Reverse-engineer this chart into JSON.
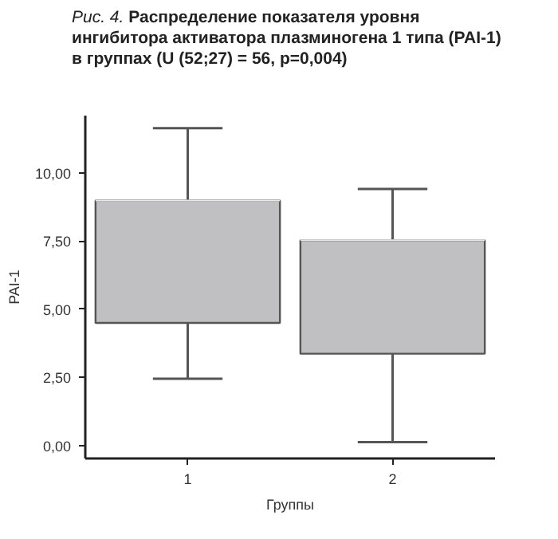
{
  "chart_data": {
    "type": "box",
    "title": "Рис. 4. Распределение показателя уровня ингибитора активатора плазминогена 1 типа (PAI-1) в группах (U (52;27) = 56, p=0,004)",
    "categories": [
      "1",
      "2"
    ],
    "xlabel": "Группы",
    "ylabel": "PAI-1",
    "series": [
      {
        "color": "#c0c0c2",
        "boxes": [
          {
            "low": 2.45,
            "q1": 4.5,
            "median": 8.99,
            "q3": 8.99,
            "high": 11.64
          },
          {
            "low": 0.13,
            "q1": 3.37,
            "median": 7.53,
            "q3": 7.53,
            "high": 9.41
          }
        ]
      }
    ],
    "ylim": [
      -0.47,
      12.1
    ],
    "yticks": [
      {
        "value": 0,
        "label": "0,00"
      },
      {
        "value": 2.5,
        "label": "2,50"
      },
      {
        "value": 5,
        "label": "5,00"
      },
      {
        "value": 7.5,
        "label": "7,50"
      },
      {
        "value": 10,
        "label": "10,00"
      }
    ],
    "grid": false
  }
}
